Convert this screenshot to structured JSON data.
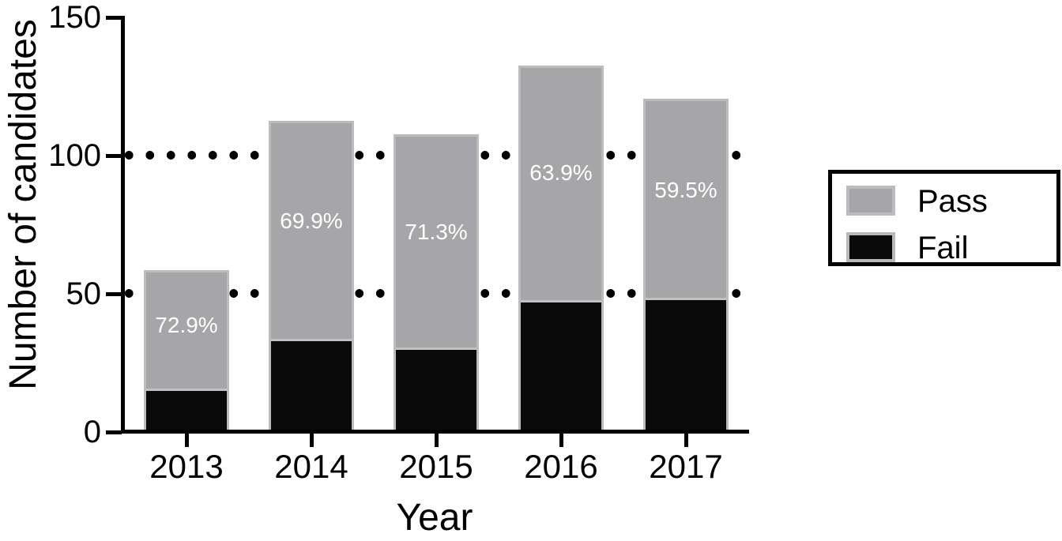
{
  "chart_data": {
    "type": "bar",
    "stacked": true,
    "title": "",
    "xlabel": "Year",
    "ylabel": "Number of candidates",
    "categories": [
      "2013",
      "2014",
      "2015",
      "2016",
      "2017"
    ],
    "series": [
      {
        "name": "Pass",
        "color": "#a6a6a9",
        "values": [
          43,
          79,
          77,
          85,
          72
        ]
      },
      {
        "name": "Fail",
        "color": "#0a0a0a",
        "values": [
          16,
          34,
          31,
          48,
          49
        ]
      }
    ],
    "totals": [
      59,
      113,
      108,
      133,
      121
    ],
    "bar_labels": {
      "meaning": "pass percentage of total candidates, shown inside Pass segment",
      "values": [
        "72.9%",
        "69.9%",
        "71.3%",
        "63.9%",
        "59.5%"
      ],
      "text_color": "#ffffff"
    },
    "y_ticks": [
      "0",
      "50",
      "100",
      "150"
    ],
    "y_tick_values": [
      0,
      50,
      100,
      150
    ],
    "ylim": [
      0,
      150
    ],
    "gridlines": {
      "style": "dotted",
      "color": "#000000",
      "at": [
        50,
        100
      ]
    },
    "legend": {
      "position": "right",
      "entries": [
        {
          "label": "Pass",
          "color": "#a6a6a9"
        },
        {
          "label": "Fail",
          "color": "#0a0a0a"
        }
      ]
    }
  },
  "colors": {
    "background": "#ffffff",
    "axis": "#000000",
    "pass_fill": "#a6a6a9",
    "fail_fill": "#0a0a0a",
    "bar_border": "#bcbcbf",
    "label_text": "#ffffff"
  }
}
